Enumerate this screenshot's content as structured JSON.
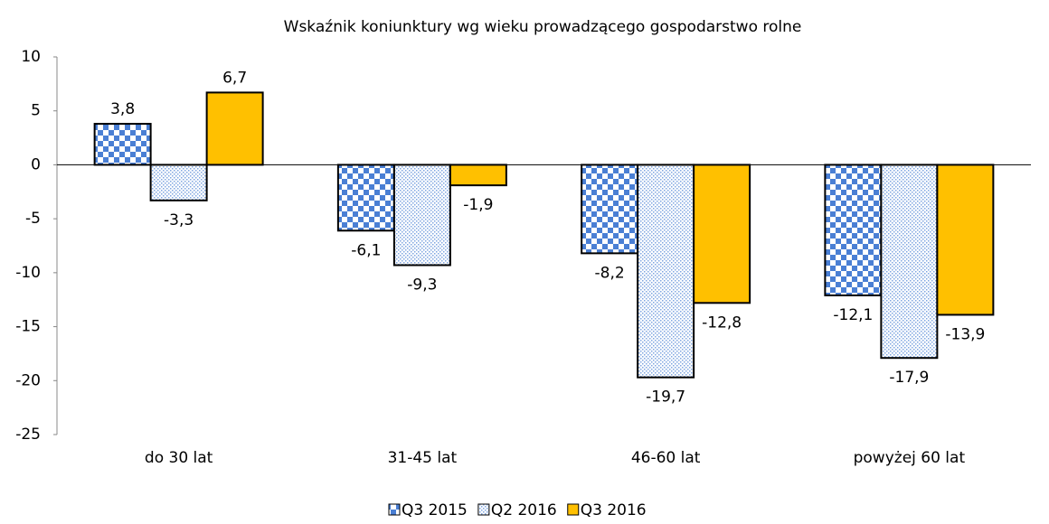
{
  "chart_data": {
    "type": "bar",
    "title": "Wskaźnik koniunktury wg wieku prowadzącego gospodarstwo rolne",
    "categories": [
      "do 30 lat",
      "31-45 lat",
      "46-60 lat",
      "powyżej 60 lat"
    ],
    "series": [
      {
        "name": "Q3 2015",
        "color": "#4a7fd4",
        "pattern": "checker",
        "values": [
          3.8,
          -6.1,
          -8.2,
          -12.1
        ],
        "value_labels": [
          "3,8",
          "-6,1",
          "-8,2",
          "-12,1"
        ]
      },
      {
        "name": "Q2 2016",
        "color": "#7fa6e0",
        "pattern": "dots",
        "values": [
          -3.3,
          -9.3,
          -19.7,
          -17.9
        ],
        "value_labels": [
          "-3,3",
          "-9,3",
          "-19,7",
          "-17,9"
        ]
      },
      {
        "name": "Q3 2016",
        "color": "#ffc000",
        "pattern": "solid",
        "values": [
          6.7,
          -1.9,
          -12.8,
          -13.9
        ],
        "value_labels": [
          "6,7",
          "-1,9",
          "-12,8",
          "-13,9"
        ]
      }
    ],
    "ylim": [
      -25,
      10
    ],
    "yticks": [
      -25,
      -20,
      -15,
      -10,
      -5,
      0,
      5,
      10
    ],
    "grid": false,
    "legend": "bottom"
  }
}
